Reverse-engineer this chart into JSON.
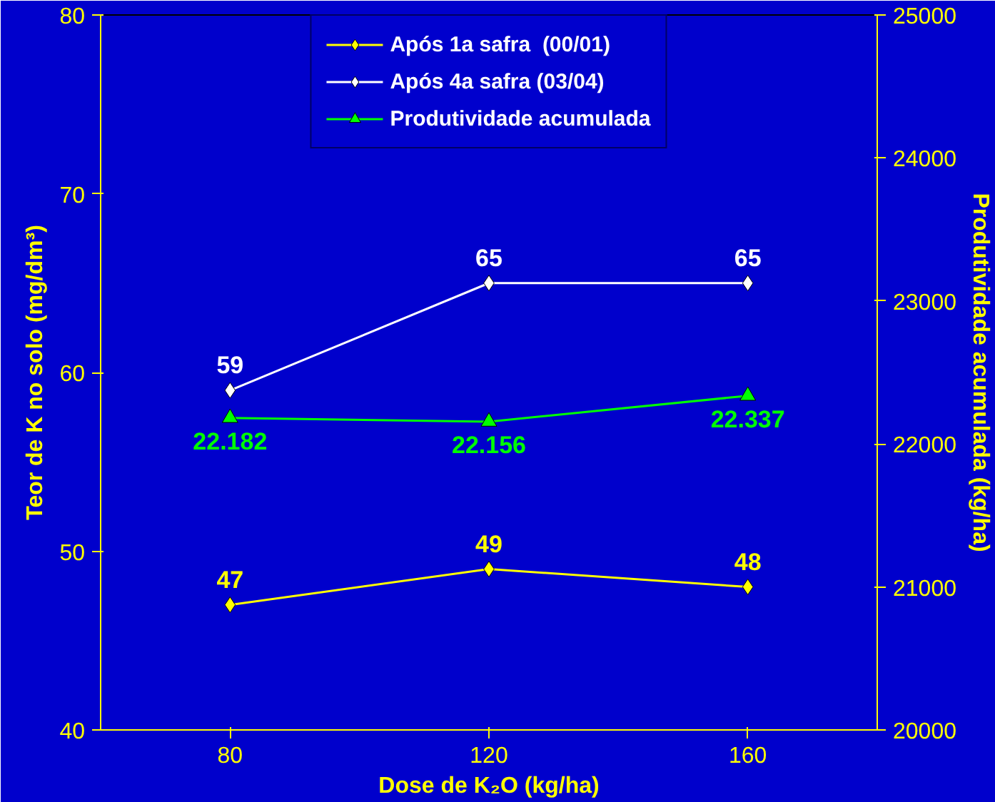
{
  "chart_data": {
    "type": "line",
    "xlabel": "Dose de K₂O (kg/ha)",
    "ylabel": "Teor de K no solo (mg/dm³)",
    "y2label": "Produtividade acumulada (kg/ha)",
    "categories": [
      "80",
      "120",
      "160"
    ],
    "series": [
      {
        "name": "Após 1a safra  (00/01)",
        "color": "#ffff00",
        "values": [
          47,
          49,
          48
        ],
        "marker": "diamond",
        "value_labels": [
          "47",
          "49",
          "48"
        ]
      },
      {
        "name": "Após 4a safra (03/04)",
        "color": "#ffffff",
        "values": [
          59,
          65,
          65
        ],
        "marker": "diamond",
        "value_labels": [
          "59",
          "65",
          "65"
        ]
      },
      {
        "name": "Produtividade acumulada",
        "color": "#00ff00",
        "values": [
          22182,
          22156,
          22337
        ],
        "marker": "triangle",
        "axis": "y2",
        "value_labels": [
          "22.182",
          "22.156",
          "22.337"
        ]
      }
    ],
    "ylim": [
      40,
      80
    ],
    "yticks": [
      40,
      50,
      60,
      70,
      80
    ],
    "y2lim": [
      20000,
      25000
    ],
    "y2ticks": [
      20000,
      21000,
      22000,
      23000,
      24000,
      25000
    ],
    "grid": false,
    "legend": "top",
    "line_style": "solid"
  }
}
